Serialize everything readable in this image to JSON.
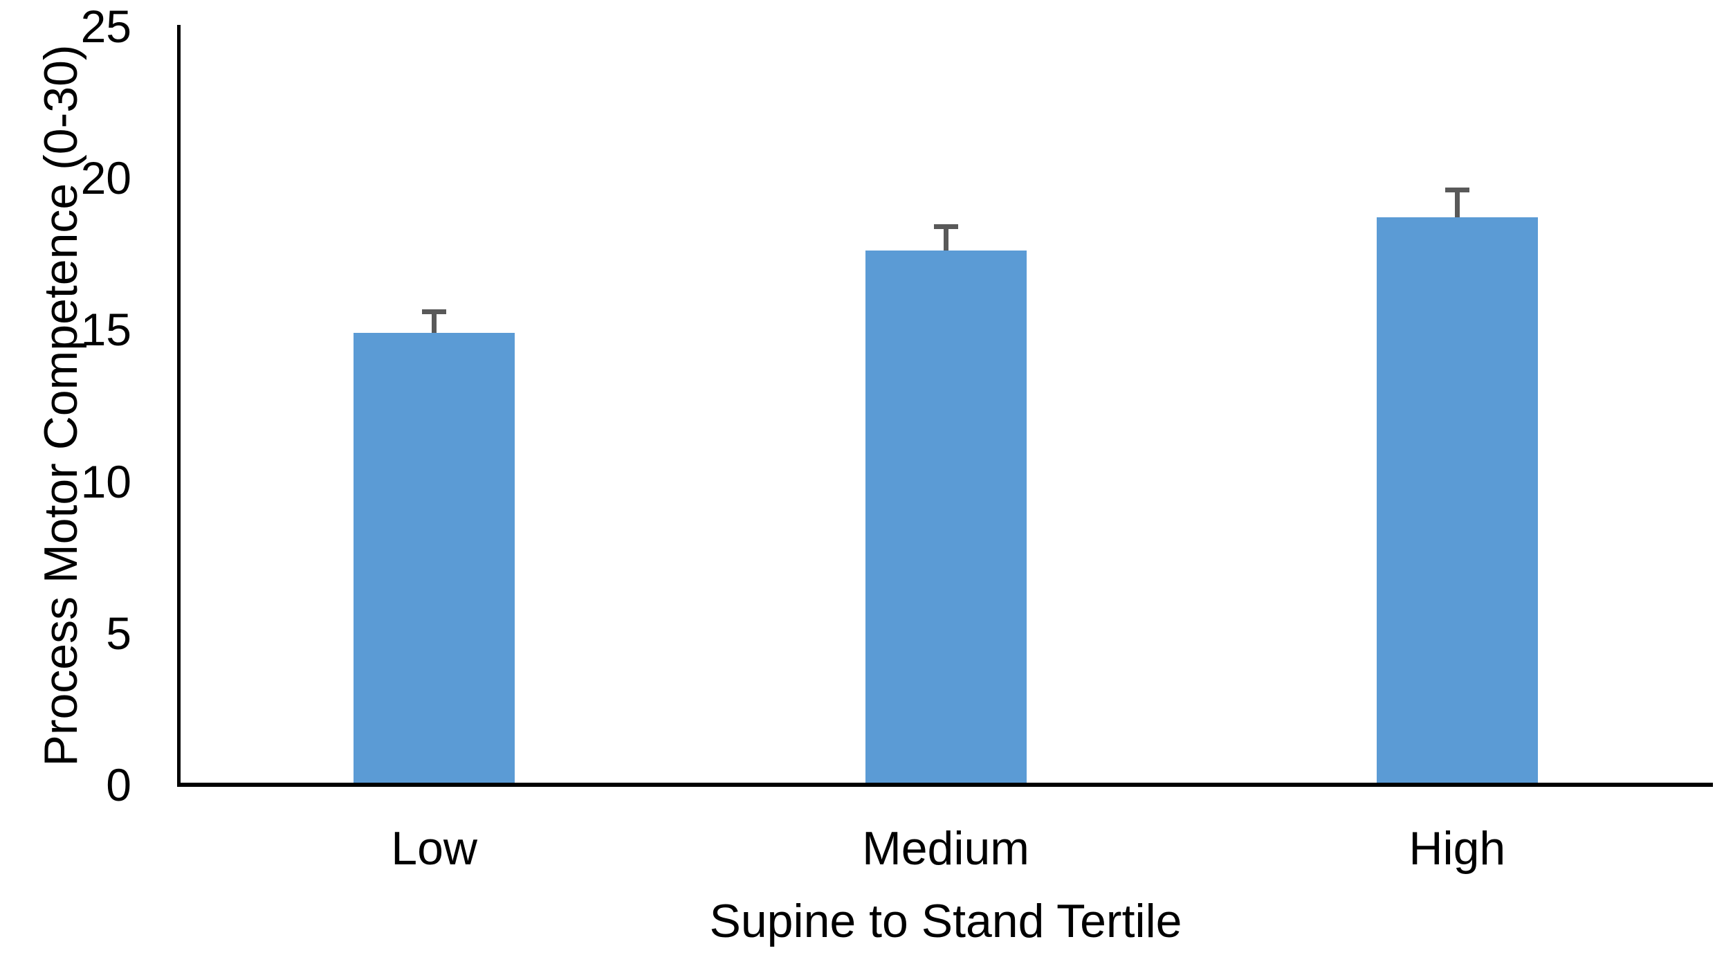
{
  "chart_data": {
    "type": "bar",
    "title": "",
    "categories": [
      "Low",
      "Medium",
      "High"
    ],
    "series": [
      {
        "name": "Process Motor Competence",
        "values": [
          14.9,
          17.6,
          18.7
        ],
        "error_plus": [
          0.7,
          0.8,
          0.9
        ]
      }
    ],
    "xlabel": "Supine to Stand Tertile",
    "ylabel": "Process Motor Competence (0-30)",
    "ylim": [
      0,
      25
    ],
    "yticks": [
      0,
      5,
      10,
      15,
      20,
      25
    ],
    "grid": false,
    "legend": "none",
    "bar_color": "#5B9BD5",
    "error_bar_color": "#595959",
    "axis_color": "#000000",
    "background_color": "#FFFFFF"
  }
}
